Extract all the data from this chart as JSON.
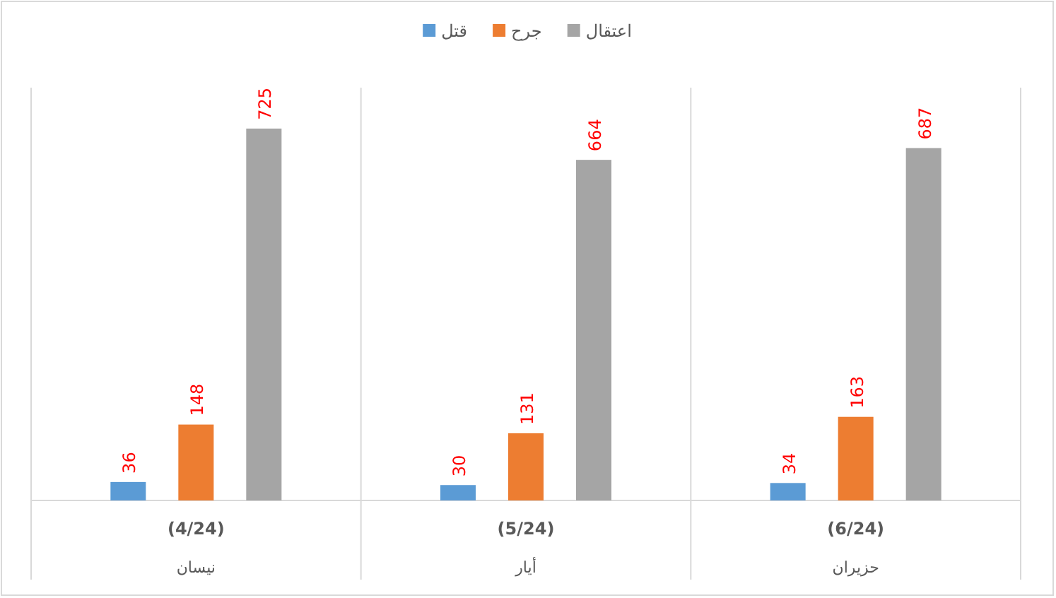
{
  "chart_data": {
    "type": "bar",
    "categories": [
      "(4/24)\nنيسان",
      "(5/24)\nأيار",
      "(6/24)\nحزيران"
    ],
    "series": [
      {
        "name": "قتل",
        "color": "#5b9bd5",
        "values": [
          36,
          30,
          34
        ]
      },
      {
        "name": "جرح",
        "color": "#ed7d31",
        "values": [
          148,
          131,
          163
        ]
      },
      {
        "name": "اعتقال",
        "color": "#a5a5a5",
        "values": [
          725,
          664,
          687
        ]
      }
    ],
    "data_labels": true,
    "legend": "top",
    "grid": false,
    "tick_labels": "x"
  }
}
